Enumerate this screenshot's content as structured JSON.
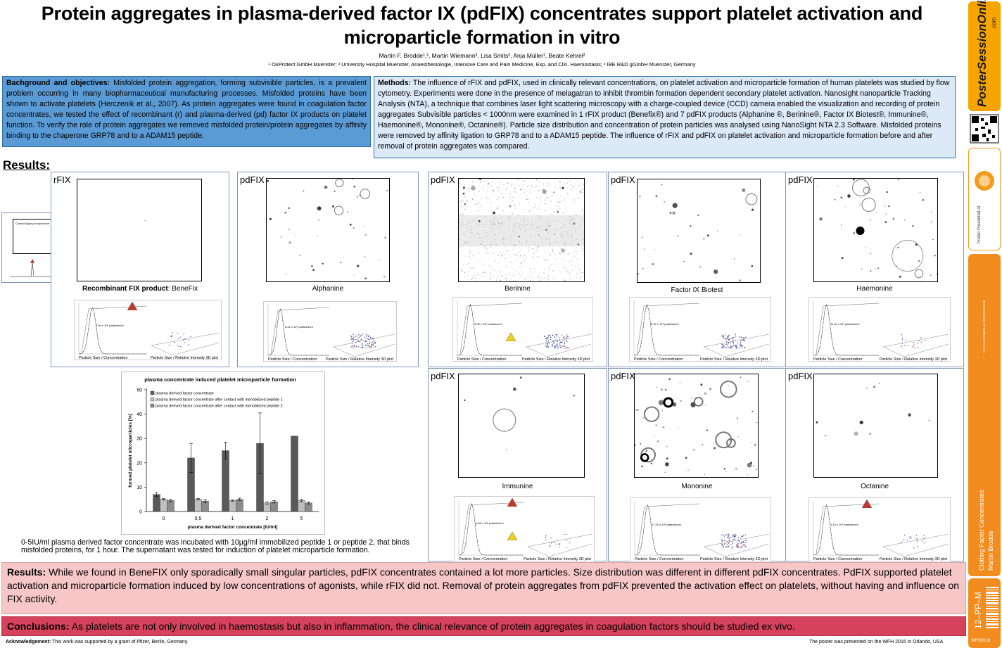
{
  "title": "Protein aggregates in plasma-derived factor IX (pdFIX) concentrates support platelet activation and microparticle formation in vitro",
  "authors": "Martin F. Brodde¹,², Martin Wiemann³, Lisa Smits², Anja Müller¹, Beate Kehrel²",
  "affiliations": "¹ OxProtect GmbH Muenster; ² University Hospital Muenster, Anaesthesiologie, Intensive Care and Pain Medicine, Exp. and Clin. Haemostasis; ³ IBE R&D gGmbH Muenster, Germany",
  "background": {
    "heading": "Bachground and objectives:",
    "text": " Misfolded protein aggregation, forming subvisible particles, is a prevalent problem occurring in many biopharmaceutical manufacturing processes. Misfolded proteins have been shown to activate platelets (Herczenik et al., 2007). As protein aggregates were found in coagulation factor concentrates, we tested the effect of recombinant (r) and plasma-derived (pd) factor IX products on platelet function. To verify the role of protein aggregates we removed misfolded protein/protein aggregates by affinity binding to the chaperone GRP78 and to a ADAM15 peptide."
  },
  "methods": {
    "heading": "Methods:",
    "text": " The influence of rFIX and pdFIX, used in clinically relevant concentrations, on platelet activation and microparticle formation of human platelets was studied by flow cytometry. Experiments were done in the presence of melagatran to inhibit thrombin formation dependent secondary platelet activation. Nanosight nanoparticle Tracking Analysis (NTA), a technique that combines laser light scattering microscopy with a charge-coupled device (CCD) camera enabled the visualization and recording of protein aggregates Subvisible particles < 1000nm were examined in 1 rFIX product (Benefix®) and 7 pdFIX products (Alphanine ®, Berinine®, Factor IX Biotest®, Immunine®, Haemonine®, Mononine®, Octanine®). Particle size distribution and concentration of protein particles was analysed using NanoSight NTA 2.3 Software. Misfolded proteins were removed by affinity ligation to GRP78 and to a ADAM15 peptide. The influence of rFIX and pdFIX on platelet activation and microparticle formation before and after removal of protein aggregates was compared."
  },
  "results_heading": "Results:",
  "inset_label": "Control Aqua pro injectione",
  "nta_captions": {
    "left": "Particle Size / Concentration",
    "right": "Particle Size / Relative Intensity 3D plot"
  },
  "panels": [
    {
      "label": "rFIX",
      "caption_bold": "Recombinant FIX product",
      "caption": ": BeneFix",
      "conc": "0.09 x 10⁸ particles/ml"
    },
    {
      "label": "pdFIX",
      "caption_bold": "",
      "caption": "Alphanine",
      "conc": "8.44 x 10⁸ particles/ml"
    },
    {
      "label": "pdFIX",
      "caption_bold": "",
      "caption": "Berinine",
      "conc": "9.28 x 10⁸ particles/ml"
    },
    {
      "label": "pdFIX",
      "caption_bold": "",
      "caption": "Factor IX Biotest",
      "conc": "5.42 x 10⁸ particles/ml"
    },
    {
      "label": "pdFIX",
      "caption_bold": "",
      "caption": "Haemonine",
      "conc": "11.02 x 10⁸ particles/ml"
    },
    {
      "label": "pdFIX",
      "caption_bold": "",
      "caption": "Immunine",
      "conc": "0.68 x 10⁸ particles/ml"
    },
    {
      "label": "pdFIX",
      "caption_bold": "",
      "caption": "Mononine",
      "conc": "17.32 x 10⁸ particles/ml"
    },
    {
      "label": "pdFIX",
      "caption_bold": "",
      "caption": "Octanine",
      "conc": "1.15 x 10⁸ particles/ml"
    }
  ],
  "chart_data": {
    "type": "bar",
    "title": "plasma concentrate induced platelet microparticle formation",
    "xlabel": "plasma derived factor concentrate [IU/ml]",
    "ylabel": "formed platelet microparticles [%]",
    "categories": [
      "0",
      "0,5",
      "1",
      "2",
      "5"
    ],
    "ylim": [
      0,
      50
    ],
    "yticks": [
      0,
      10,
      20,
      30,
      40,
      50
    ],
    "legend_position": "top-left",
    "series": [
      {
        "name": "plasma derived factor concentrate",
        "color": "#595959",
        "values": [
          7,
          22,
          25,
          28,
          31
        ],
        "errors": [
          0.8,
          6,
          3.5,
          12.5,
          0
        ]
      },
      {
        "name": "plasma derived factor concentrate after contact with immobilized peptide 1",
        "color": "#bfbfbf",
        "values": [
          5,
          5,
          4.5,
          3.5,
          4.5
        ],
        "errors": [
          0.3,
          0.3,
          0.3,
          0.5,
          0.5
        ]
      },
      {
        "name": "plasma derived factor concentrate after contact with immobilized peptide 2",
        "color": "#8c8c8c",
        "values": [
          4.5,
          4.3,
          5,
          4,
          3.5
        ],
        "errors": [
          0.5,
          0.6,
          0.5,
          0.5,
          0.4
        ]
      }
    ]
  },
  "chart_note": "0-5IU/ml plasma derived factor concentrate was incubated with 10µg/ml immobilized peptide 1 or peptide 2, that binds misfolded proteins, for 1 hour. The supernatant was tested for induction of platelet microparticle formation.",
  "results": {
    "heading": "Results:",
    "text": " While we found in BeneFIX only sporadically small singular particles, pdFIX concentrates contained a lot more particles. Size distribution was different in different pdFIX concentrates. PdFIX supported platelet activation and microparticle formation induced by low concentrations of agonists, while rFIX did not. Removal of protein aggregates from pdFIX prevented the activation effect on platelets, without having and influence on FIX activity."
  },
  "conclusions": {
    "heading": "Conclusions:",
    "text": " As platelets are not only involved in haemostasis but also in inflammation, the clinical relevance of protein aggregates in coagulation factors should be studied ex vivo."
  },
  "acknowledgement": {
    "heading": "Acknowledgement:",
    "text": " This work was supported by a grant of Pfizer, Berlin, Germany."
  },
  "presented_note": "The poster was presented on the WFH 2016 in Orlando, USA",
  "sidebar": {
    "logo": "PosterSessionOnline",
    "logo_suffix": ".com",
    "presented_at": "Poster Presented at:",
    "doi": "DOI: 10.3252/pso.eu.WFH2016.2016",
    "topic": "Clotting Factor Concentrates",
    "author": "Martin Brodde",
    "code": "12–PP–M",
    "year": "WFH2016"
  }
}
